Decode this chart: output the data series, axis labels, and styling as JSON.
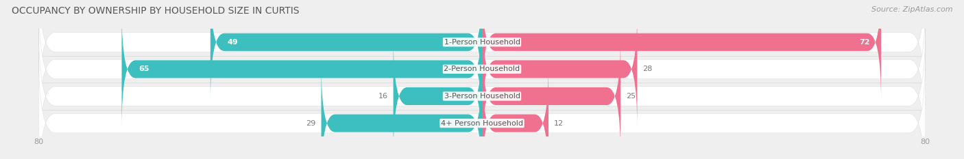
{
  "title": "OCCUPANCY BY OWNERSHIP BY HOUSEHOLD SIZE IN CURTIS",
  "source": "Source: ZipAtlas.com",
  "categories": [
    "1-Person Household",
    "2-Person Household",
    "3-Person Household",
    "4+ Person Household"
  ],
  "owner_values": [
    49,
    65,
    16,
    29
  ],
  "renter_values": [
    72,
    28,
    25,
    12
  ],
  "max_val": 80,
  "owner_color": "#3DBFBF",
  "renter_color": "#F07090",
  "bar_bg_color": "#FFFFFF",
  "bg_color": "#EFEFEF",
  "sep_color": "#D8D8D8",
  "title_color": "#555555",
  "source_color": "#999999",
  "label_color": "#555555",
  "value_color_light": "#FFFFFF",
  "value_color_dark": "#777777",
  "title_fontsize": 10,
  "source_fontsize": 8,
  "bar_label_fontsize": 8,
  "value_fontsize": 8,
  "legend_fontsize": 8,
  "axis_tick_fontsize": 8
}
